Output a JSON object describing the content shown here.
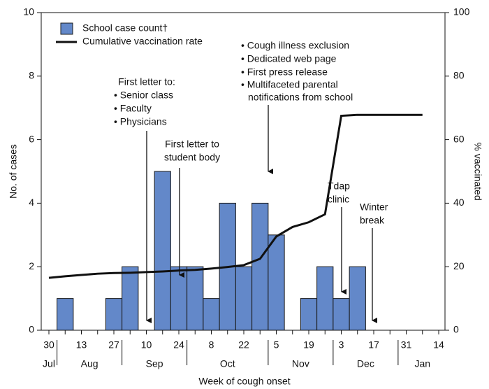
{
  "chart_data": {
    "type": "bar-line",
    "categories": [
      "30",
      null,
      "13",
      null,
      "27",
      null,
      "10",
      null,
      "24",
      null,
      "8",
      null,
      "22",
      null,
      "5",
      null,
      "19",
      null,
      "3",
      null,
      "17",
      null,
      "31",
      null,
      "14"
    ],
    "months": [
      "Jul",
      "Aug",
      "Sep",
      "Oct",
      "Nov",
      "Dec",
      "Jan"
    ],
    "series": [
      {
        "name": "School case count†",
        "type": "bar",
        "color": "#6388c9",
        "values": [
          0,
          1,
          0,
          0,
          1,
          2,
          0,
          5,
          2,
          2,
          1,
          4,
          2,
          4,
          3,
          0,
          1,
          2,
          1,
          2,
          0,
          0,
          0,
          0,
          0
        ]
      },
      {
        "name": "Cumulative vaccination rate",
        "type": "line",
        "color": "#111111",
        "axis": "y2",
        "values": [
          16.5,
          17,
          17.4,
          17.8,
          18,
          18.1,
          18.3,
          18.5,
          18.8,
          19,
          19.4,
          19.9,
          20.5,
          22.5,
          29.5,
          32.5,
          34,
          36.5,
          67.5,
          67.8,
          67.8,
          67.8,
          67.8,
          67.8,
          null
        ]
      }
    ],
    "ylim": [
      0,
      10
    ],
    "yticks": [
      0,
      2,
      4,
      6,
      8,
      10
    ],
    "y2lim": [
      0,
      100
    ],
    "y2ticks": [
      0,
      20,
      40,
      60,
      80,
      100
    ],
    "ylabel": "No. of cases",
    "y2label": "% vaccinated",
    "xlabel": "Week of cough onset",
    "annotations": [
      {
        "lines": [
          "First letter to:",
          "• Senior class",
          "• Faculty",
          "• Physicians"
        ]
      },
      {
        "lines": [
          "First letter to",
          "student body"
        ]
      },
      {
        "lines": [
          "• Cough illness exclusion",
          "• Dedicated web page",
          "• First press release",
          "• Multifaceted parental",
          "notifications from school"
        ]
      },
      {
        "lines": [
          "Tdap",
          "clinic"
        ]
      },
      {
        "lines": [
          "Winter",
          "break"
        ]
      }
    ]
  }
}
